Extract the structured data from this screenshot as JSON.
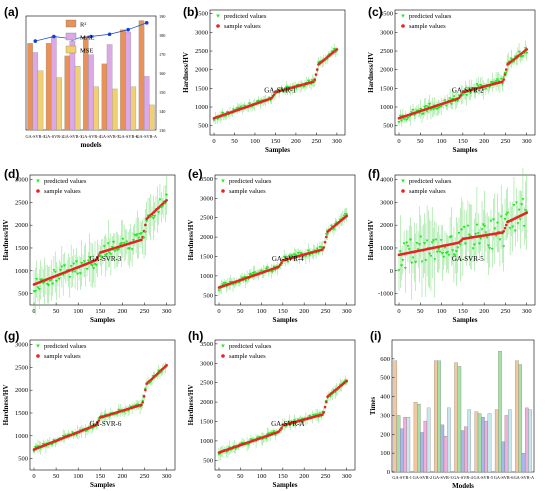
{
  "colors": {
    "predicted": "#22e822",
    "sample": "#e82222",
    "error_bar": "#5cd65c",
    "model_line": "#1040d0"
  },
  "panel_a": {
    "label": "(a)",
    "xlabel": "models",
    "legend": [
      "R²",
      "MAE",
      "MSE"
    ],
    "legend_colors": [
      "#e8925a",
      "#dca8e8",
      "#f2cf72"
    ],
    "right_axis_ticks": [
      "130",
      "140",
      "150",
      "160",
      "170",
      "180",
      "190"
    ],
    "categories": [
      "GA-SVR-1",
      "GA-SVR-2",
      "GA-SVR-3",
      "GA-SVR-4",
      "GA-SVR-5",
      "GA-SVR-6",
      "GA-SVR-A"
    ],
    "r2_bar_heights": [
      0.76,
      0.76,
      0.65,
      0.82,
      0.58,
      0.88,
      0.96
    ],
    "mae_bar_heights": [
      0.68,
      0.82,
      0.78,
      0.66,
      0.75,
      0.86,
      0.47
    ],
    "mse_bar_heights": [
      0.52,
      0.46,
      0.56,
      0.38,
      0.36,
      0.38,
      0.22
    ],
    "r2_points": [
      0.78,
      0.82,
      0.8,
      0.82,
      0.84,
      0.88,
      0.94
    ]
  },
  "scatter_common": {
    "xlabel": "Samples",
    "ylabel": "Hardness/HV",
    "legend_predicted": "predicted values",
    "legend_sample": "sample values",
    "x_ticks": [
      "0",
      "50",
      "100",
      "150",
      "200",
      "250",
      "300"
    ]
  },
  "scatter_panels": [
    {
      "key": "b",
      "label": "(b)",
      "title": "GA-SVR-1",
      "yticks": [
        "500",
        "1000",
        "1500",
        "2000",
        "2500",
        "3000",
        "3500"
      ],
      "noise": 60,
      "err": 120
    },
    {
      "key": "c",
      "label": "(c)",
      "title": "GA-SVR-2",
      "yticks": [
        "500",
        "1000",
        "1500",
        "2000",
        "2500",
        "3000",
        "3500"
      ],
      "noise": 110,
      "err": 200
    },
    {
      "key": "d",
      "label": "(d)",
      "title": "GA-SVR-3",
      "yticks": [
        "500",
        "1000",
        "1500",
        "2000",
        "2500",
        "3000"
      ],
      "noise": 160,
      "err": 380
    },
    {
      "key": "e",
      "label": "(e)",
      "title": "GA-SVR-4",
      "yticks": [
        "500",
        "1000",
        "1500",
        "2000",
        "2500",
        "3000",
        "3500"
      ],
      "noise": 80,
      "err": 140
    },
    {
      "key": "f",
      "label": "(f)",
      "title": "GA-SVR-5",
      "yticks": [
        "-1000",
        "0",
        "1000",
        "2000",
        "3000",
        "4000"
      ],
      "noise": 700,
      "err": 1200
    },
    {
      "key": "g",
      "label": "(g)",
      "title": "GA-SVR-6",
      "yticks": [
        "500",
        "1000",
        "1500",
        "2000",
        "2500",
        "3000"
      ],
      "noise": 45,
      "err": 110
    },
    {
      "key": "h",
      "label": "(h)",
      "title": "GA-SVR-A",
      "yticks": [
        "500",
        "1000",
        "1500",
        "2000",
        "2500",
        "3000",
        "3500"
      ],
      "noise": 55,
      "err": 130
    }
  ],
  "panel_i": {
    "label": "(i)",
    "xlabel": "Models",
    "ylabel": "Times",
    "yticks": [
      "0",
      "100",
      "200",
      "300",
      "400",
      "500",
      "600"
    ],
    "categories": [
      "GA-SVR-1",
      "GA-SVR-2",
      "GA-SVR-3",
      "GA-SVR-4",
      "GA-SVR-5",
      "GA-SVR-6",
      "GA-SVR-A"
    ],
    "bar_colors": [
      "#f2c8a0",
      "#a8e0a8",
      "#a8b8ec",
      "#f0b0d8",
      "#c8e8f0"
    ],
    "values": [
      [
        590,
        300,
        230,
        290,
        290
      ],
      [
        370,
        360,
        210,
        270,
        340
      ],
      [
        590,
        590,
        250,
        190,
        340
      ],
      [
        580,
        560,
        220,
        240,
        330
      ],
      [
        320,
        310,
        290,
        270,
        310
      ],
      [
        330,
        640,
        160,
        300,
        330
      ],
      [
        590,
        570,
        100,
        340,
        330
      ]
    ]
  }
}
